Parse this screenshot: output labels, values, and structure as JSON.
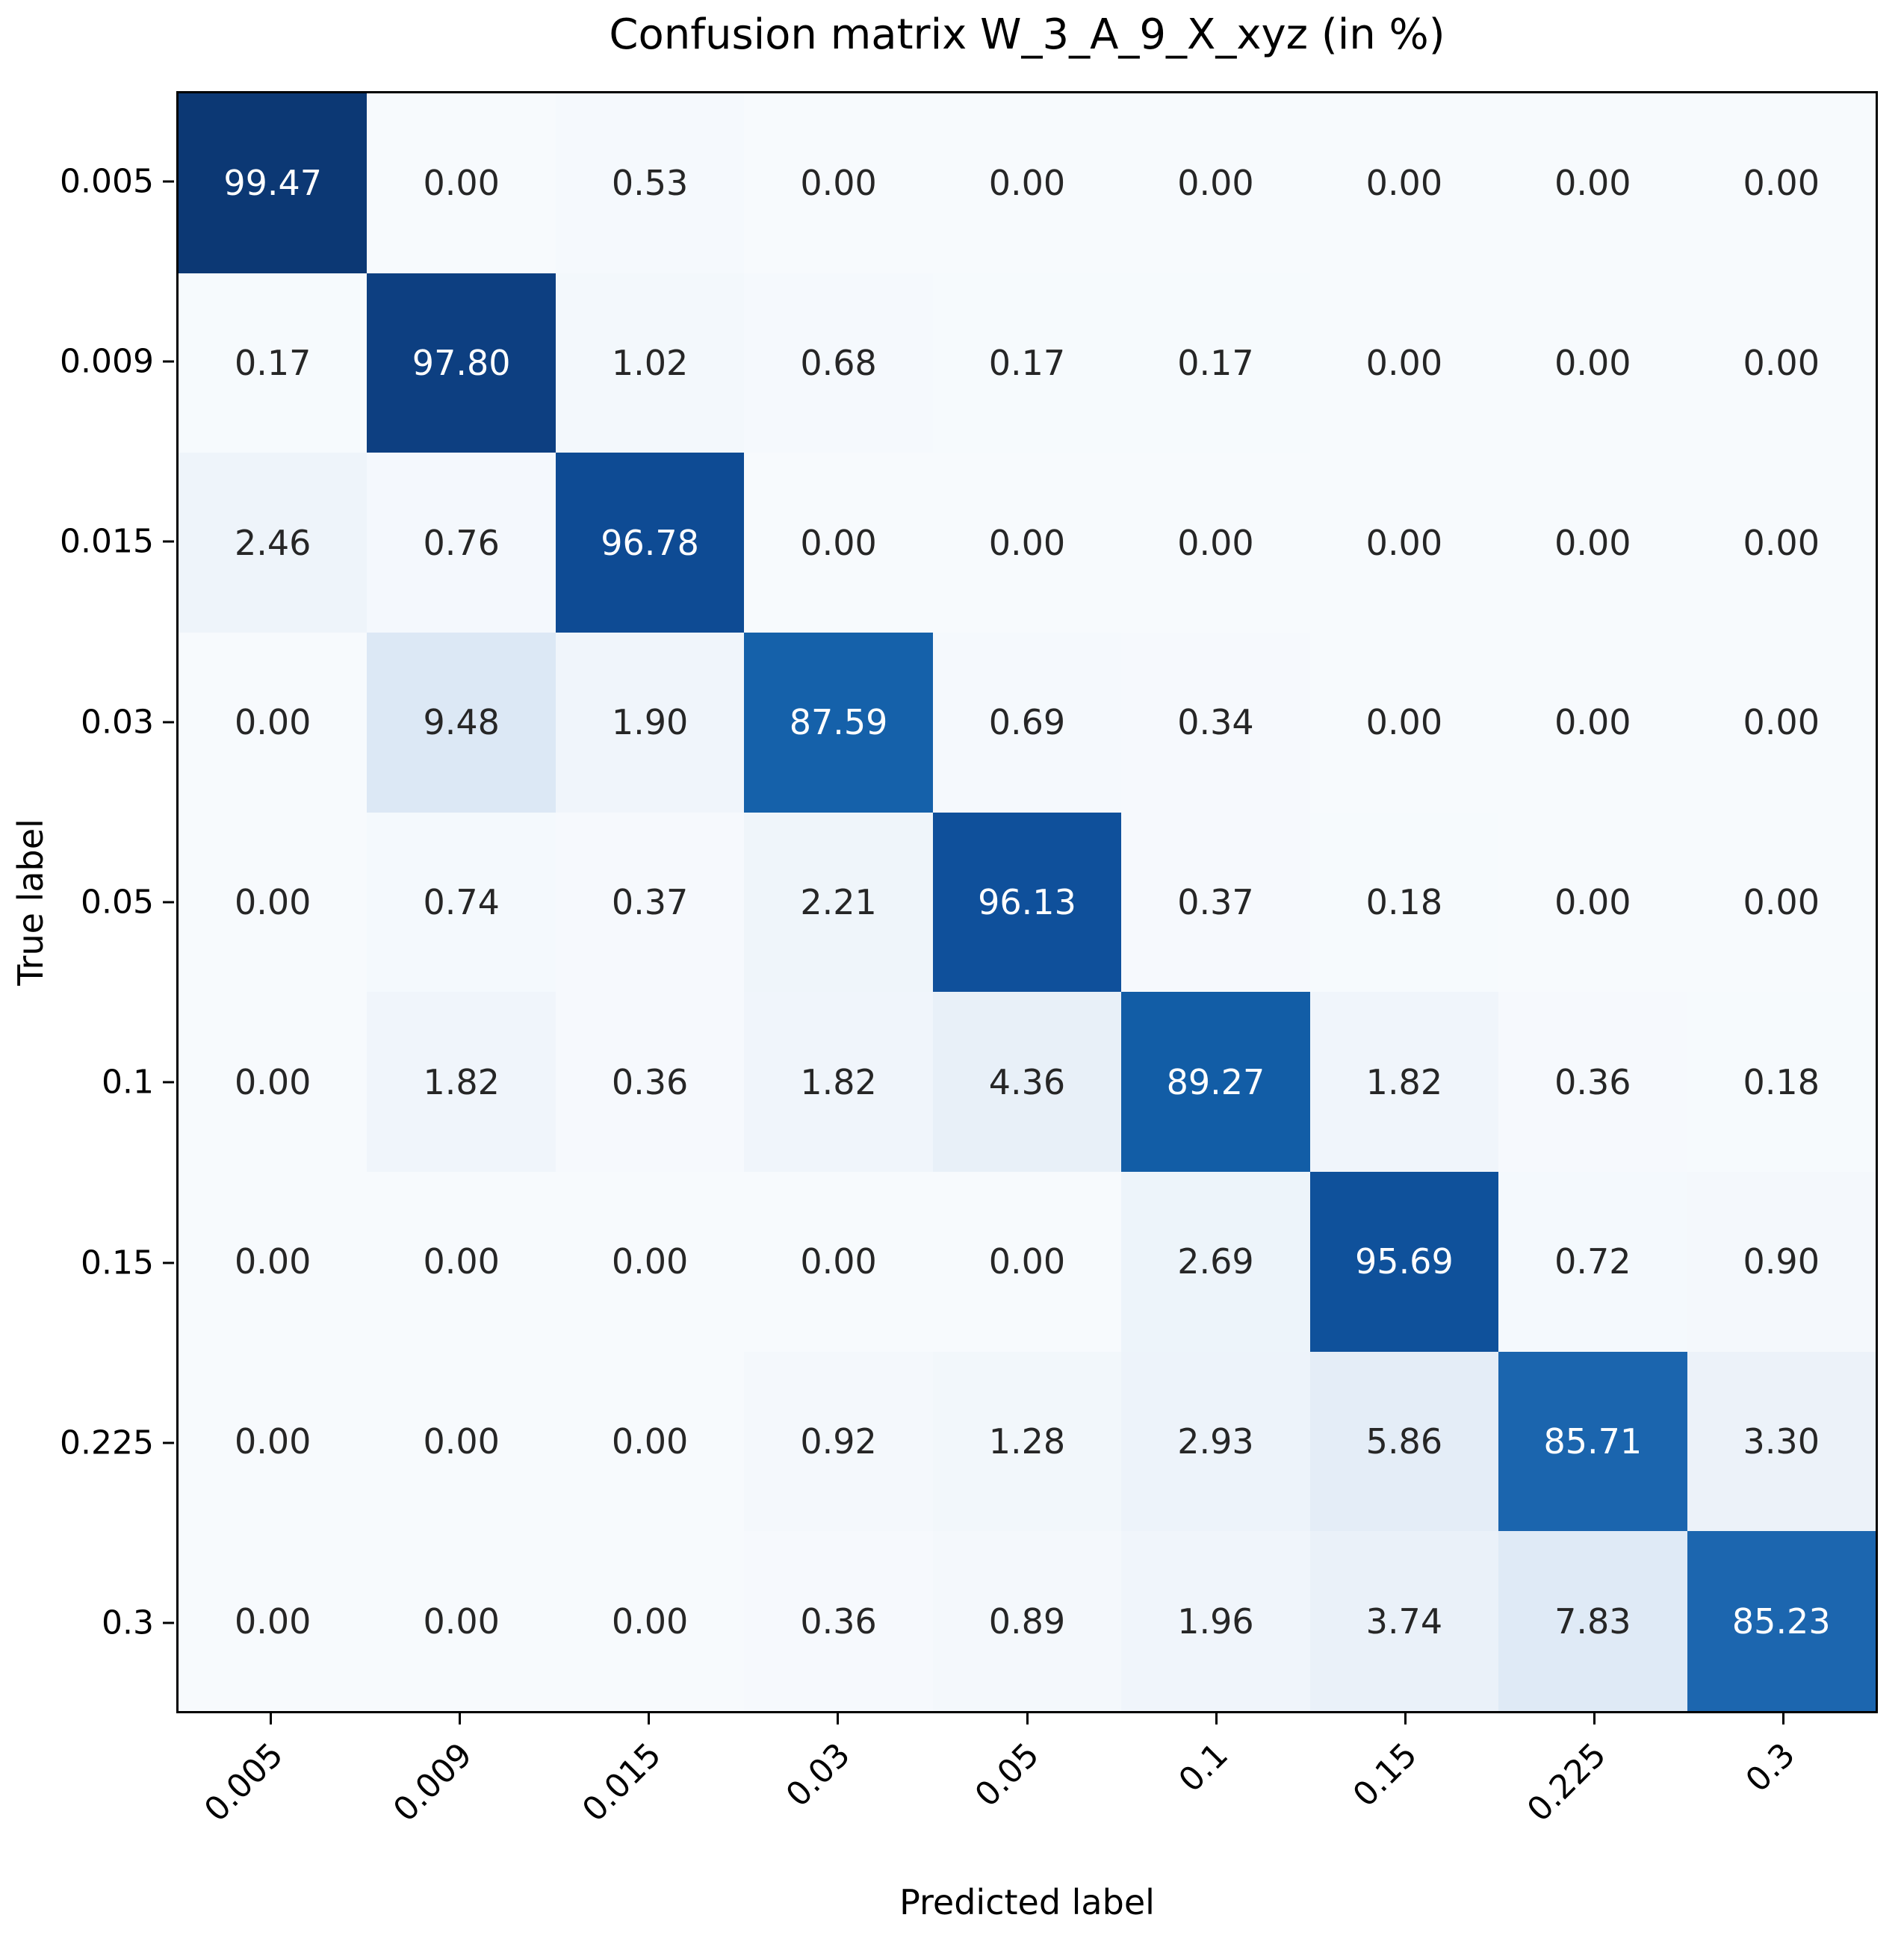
{
  "title": "Confusion matrix W_3_A_9_X_xyz (in %)",
  "chart_data": {
    "type": "heatmap",
    "title": "Confusion matrix W_3_A_9_X_xyz (in %)",
    "xlabel": "Predicted label",
    "ylabel": "True label",
    "x_tick_labels": [
      "0.005",
      "0.009",
      "0.015",
      "0.03",
      "0.05",
      "0.1",
      "0.15",
      "0.225",
      "0.3"
    ],
    "y_tick_labels": [
      "0.005",
      "0.009",
      "0.015",
      "0.03",
      "0.05",
      "0.1",
      "0.15",
      "0.225",
      "0.3"
    ],
    "values_percent": [
      [
        99.47,
        0.0,
        0.53,
        0.0,
        0.0,
        0.0,
        0.0,
        0.0,
        0.0
      ],
      [
        0.17,
        97.8,
        1.02,
        0.68,
        0.17,
        0.17,
        0.0,
        0.0,
        0.0
      ],
      [
        2.46,
        0.76,
        96.78,
        0.0,
        0.0,
        0.0,
        0.0,
        0.0,
        0.0
      ],
      [
        0.0,
        9.48,
        1.9,
        87.59,
        0.69,
        0.34,
        0.0,
        0.0,
        0.0
      ],
      [
        0.0,
        0.74,
        0.37,
        2.21,
        96.13,
        0.37,
        0.18,
        0.0,
        0.0
      ],
      [
        0.0,
        1.82,
        0.36,
        1.82,
        4.36,
        89.27,
        1.82,
        0.36,
        0.18
      ],
      [
        0.0,
        0.0,
        0.0,
        0.0,
        0.0,
        2.69,
        95.69,
        0.72,
        0.9
      ],
      [
        0.0,
        0.0,
        0.0,
        0.92,
        1.28,
        2.93,
        5.86,
        85.71,
        3.3
      ],
      [
        0.0,
        0.0,
        0.0,
        0.36,
        0.89,
        1.96,
        3.74,
        7.83,
        85.23
      ]
    ],
    "value_range": [
      0,
      100
    ],
    "value_decimals": 2,
    "colormap": "Blues",
    "grid": false,
    "legend": "none",
    "x_tick_rotation_deg": 45
  },
  "colors": {
    "background": "#ffffff",
    "axis_frame": "#000000",
    "cmap_low": "#f7fafd",
    "cmap_high": "#0b366f",
    "cell_text_dark": "#262626",
    "cell_text_light": "#ffffff",
    "cmap_stops": [
      [
        0,
        "#f7fafd"
      ],
      [
        0.6,
        "#f5f9fd"
      ],
      [
        1.5,
        "#f1f6fb"
      ],
      [
        2.5,
        "#eef4fa"
      ],
      [
        3.5,
        "#ebf2f9"
      ],
      [
        4.8,
        "#e7eff8"
      ],
      [
        6.5,
        "#e2ecf7"
      ],
      [
        8,
        "#dfeaf6"
      ],
      [
        10,
        "#dbe7f4"
      ],
      [
        45,
        "#7fb3d9"
      ],
      [
        80,
        "#2a74b8"
      ],
      [
        85,
        "#1d67b0"
      ],
      [
        88,
        "#1460a9"
      ],
      [
        90,
        "#115ba5"
      ],
      [
        94,
        "#10549e"
      ],
      [
        96.5,
        "#0f4f9a"
      ],
      [
        97.3,
        "#0d458a"
      ],
      [
        98,
        "#0d3d7e"
      ],
      [
        99,
        "#0c3a79"
      ],
      [
        100,
        "#0b366f"
      ]
    ]
  }
}
